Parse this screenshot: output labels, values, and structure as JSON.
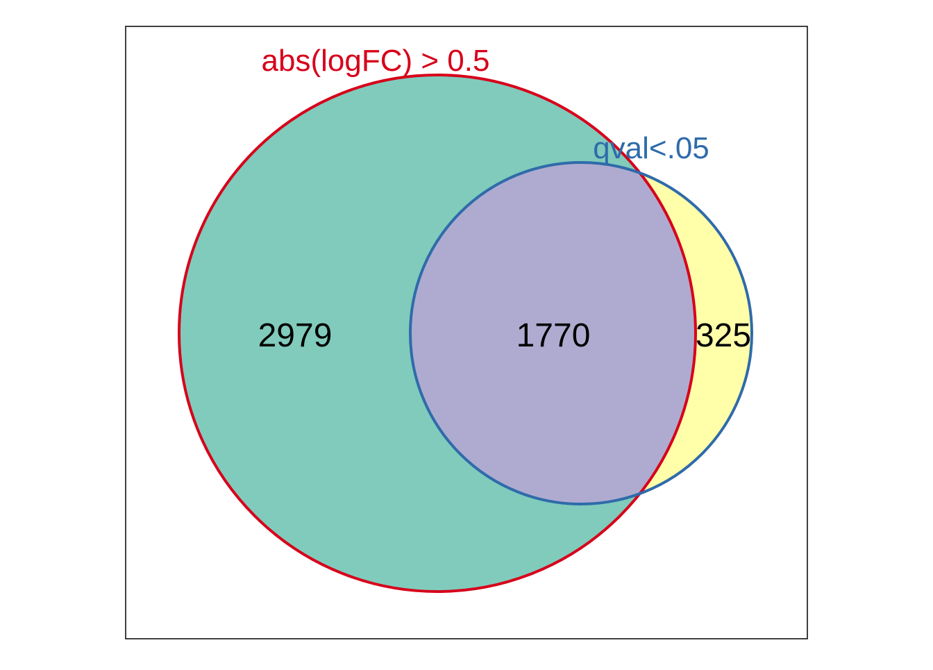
{
  "sets": [
    {
      "label": "abs(logFC) > 0.5",
      "fill": "#80CBBC",
      "stroke": "#D7001A"
    },
    {
      "label": "qval<.05",
      "fill": "#FFFFAA",
      "stroke": "#2F6BAA"
    }
  ],
  "regions": {
    "only_a": "2979",
    "intersection": "1770",
    "only_b": "325"
  },
  "colors": {
    "intersection_fill": "#AFABD0",
    "frame": "#000000",
    "count_text": "#000000"
  }
}
